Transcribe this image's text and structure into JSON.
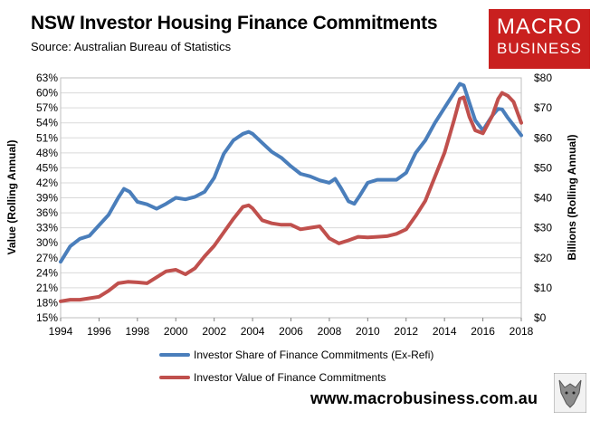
{
  "header": {
    "title": "NSW Investor Housing Finance Commitments",
    "subtitle": "Source: Australian Bureau of Statistics"
  },
  "logo": {
    "line1": "MACRO",
    "line2": "BUSINESS",
    "color": "#c9201f"
  },
  "footer": {
    "url": "www.macrobusiness.com.au"
  },
  "chart_data": {
    "type": "line",
    "ylabel": "Value (Rolling Annual)",
    "ylabel_right": "Billions (Rolling Annual)",
    "x_ticks": [
      "1994",
      "1996",
      "1998",
      "2000",
      "2002",
      "2004",
      "2006",
      "2008",
      "2010",
      "2012",
      "2014",
      "2016",
      "2018"
    ],
    "xlim": [
      1994,
      2018
    ],
    "y_left_ticks": [
      "63%",
      "60%",
      "57%",
      "54%",
      "51%",
      "48%",
      "45%",
      "42%",
      "39%",
      "36%",
      "33%",
      "30%",
      "27%",
      "24%",
      "21%",
      "18%",
      "15%"
    ],
    "ylim_left": [
      15,
      63
    ],
    "y_right_ticks": [
      "$80",
      "$70",
      "$60",
      "$50",
      "$40",
      "$30",
      "$20",
      "$10",
      "$0"
    ],
    "ylim_right": [
      0,
      80
    ],
    "grid": true,
    "legend_position": "bottom",
    "series": [
      {
        "name": "Investor Share of Finance Commitments (Ex-Refi)",
        "color": "#4a7ebb",
        "axis": "left",
        "x": [
          1994.0,
          1994.5,
          1995.0,
          1995.5,
          1996.0,
          1996.5,
          1997.0,
          1997.3,
          1997.6,
          1998.0,
          1998.5,
          1999.0,
          1999.5,
          2000.0,
          2000.5,
          2001.0,
          2001.5,
          2002.0,
          2002.5,
          2003.0,
          2003.5,
          2003.8,
          2004.0,
          2004.5,
          2005.0,
          2005.5,
          2006.0,
          2006.5,
          2007.0,
          2007.5,
          2008.0,
          2008.3,
          2008.6,
          2009.0,
          2009.3,
          2009.6,
          2010.0,
          2010.5,
          2011.0,
          2011.5,
          2012.0,
          2012.5,
          2013.0,
          2013.5,
          2014.0,
          2014.5,
          2014.8,
          2015.0,
          2015.3,
          2015.6,
          2016.0,
          2016.5,
          2016.8,
          2017.0,
          2017.3,
          2017.6,
          2018.0
        ],
        "values": [
          26.2,
          29.3,
          30.8,
          31.4,
          33.5,
          35.6,
          39.0,
          40.8,
          40.2,
          38.2,
          37.7,
          36.8,
          37.8,
          39.0,
          38.7,
          39.2,
          40.2,
          43.0,
          47.8,
          50.5,
          51.8,
          52.2,
          51.8,
          50.0,
          48.2,
          47.0,
          45.3,
          43.8,
          43.3,
          42.5,
          42.0,
          42.8,
          41.0,
          38.3,
          37.8,
          39.5,
          42.0,
          42.6,
          42.6,
          42.6,
          44.0,
          48.0,
          50.5,
          54.0,
          57.0,
          60.0,
          61.8,
          61.5,
          58.0,
          54.5,
          52.5,
          55.5,
          56.8,
          56.7,
          55.0,
          53.5,
          51.5
        ]
      },
      {
        "name": "Investor Value of Finance Commitments",
        "color": "#c0504d",
        "axis": "right",
        "x": [
          1994.0,
          1994.5,
          1995.0,
          1995.5,
          1996.0,
          1996.5,
          1997.0,
          1997.5,
          1998.0,
          1998.5,
          1999.0,
          1999.5,
          2000.0,
          2000.5,
          2001.0,
          2001.5,
          2002.0,
          2002.5,
          2003.0,
          2003.5,
          2003.8,
          2004.0,
          2004.5,
          2005.0,
          2005.5,
          2006.0,
          2006.5,
          2007.0,
          2007.5,
          2008.0,
          2008.5,
          2009.0,
          2009.5,
          2010.0,
          2010.5,
          2011.0,
          2011.5,
          2012.0,
          2012.5,
          2013.0,
          2013.5,
          2014.0,
          2014.5,
          2014.8,
          2015.0,
          2015.3,
          2015.6,
          2016.0,
          2016.5,
          2016.8,
          2017.0,
          2017.3,
          2017.6,
          2018.0
        ],
        "values": [
          5.5,
          6.0,
          6.0,
          6.5,
          7.0,
          9.0,
          11.5,
          12.0,
          11.8,
          11.5,
          13.5,
          15.5,
          16.0,
          14.5,
          16.5,
          20.5,
          24.0,
          28.5,
          33.0,
          37.0,
          37.5,
          36.5,
          32.5,
          31.5,
          31.0,
          31.0,
          29.5,
          30.0,
          30.5,
          26.5,
          24.8,
          25.8,
          27.0,
          26.8,
          27.0,
          27.2,
          28.0,
          29.5,
          34.0,
          39.0,
          47.0,
          55.0,
          66.0,
          73.0,
          73.5,
          67.0,
          62.5,
          61.5,
          67.5,
          73.0,
          75.0,
          74.0,
          72.0,
          65.0
        ]
      }
    ]
  }
}
